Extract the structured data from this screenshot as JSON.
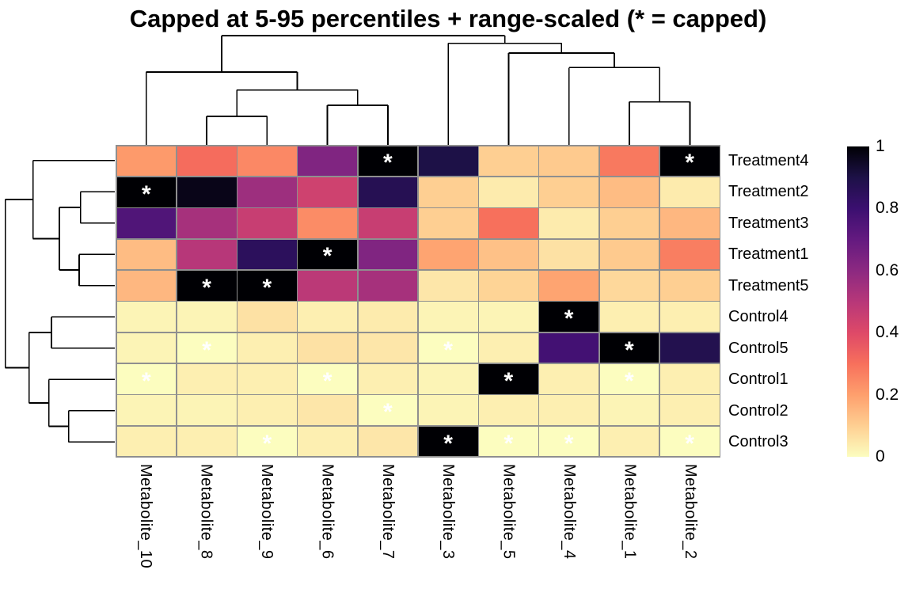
{
  "title": "Capped at 5-95 percentiles + range-scaled (* = capped)",
  "star_symbol": "*",
  "colors": {
    "background": "#ffffff",
    "cell_border": "#8f8f8f",
    "dendrogram_line": "#000000",
    "star": "#ffffff",
    "text": "#000000"
  },
  "chart_data": {
    "type": "heatmap",
    "title": "Capped at 5-95 percentiles + range-scaled (* = capped)",
    "columns": [
      "Metabolite_10",
      "Metabolite_8",
      "Metabolite_9",
      "Metabolite_6",
      "Metabolite_7",
      "Metabolite_3",
      "Metabolite_5",
      "Metabolite_4",
      "Metabolite_1",
      "Metabolite_2"
    ],
    "rows": [
      "Treatment4",
      "Treatment2",
      "Treatment3",
      "Treatment1",
      "Treatment5",
      "Control4",
      "Control5",
      "Control1",
      "Control2",
      "Control3"
    ],
    "values": [
      [
        0.21,
        0.31,
        0.25,
        0.63,
        1.0,
        0.9,
        0.1,
        0.11,
        0.28,
        1.0
      ],
      [
        1.0,
        0.97,
        0.56,
        0.44,
        0.87,
        0.1,
        0.04,
        0.1,
        0.14,
        0.04
      ],
      [
        0.75,
        0.54,
        0.46,
        0.24,
        0.46,
        0.1,
        0.3,
        0.04,
        0.1,
        0.15
      ],
      [
        0.14,
        0.5,
        0.85,
        1.0,
        0.63,
        0.19,
        0.13,
        0.06,
        0.11,
        0.27
      ],
      [
        0.15,
        1.0,
        1.0,
        0.49,
        0.54,
        0.05,
        0.09,
        0.19,
        0.08,
        0.1
      ],
      [
        0.02,
        0.02,
        0.06,
        0.03,
        0.04,
        0.02,
        0.02,
        1.0,
        0.03,
        0.03
      ],
      [
        0.02,
        0.0,
        0.03,
        0.06,
        0.05,
        0.0,
        0.03,
        0.78,
        1.0,
        0.88
      ],
      [
        0.0,
        0.03,
        0.03,
        0.0,
        0.03,
        0.02,
        1.0,
        0.03,
        0.0,
        0.03
      ],
      [
        0.02,
        0.02,
        0.03,
        0.05,
        0.0,
        0.02,
        0.03,
        0.03,
        0.02,
        0.03
      ],
      [
        0.03,
        0.03,
        0.0,
        0.03,
        0.05,
        1.0,
        0.0,
        0.0,
        0.03,
        0.0
      ]
    ],
    "capped": [
      [
        0,
        0,
        0,
        0,
        1,
        0,
        0,
        0,
        0,
        1
      ],
      [
        1,
        0,
        0,
        0,
        0,
        0,
        0,
        0,
        0,
        0
      ],
      [
        0,
        0,
        0,
        0,
        0,
        0,
        0,
        0,
        0,
        0
      ],
      [
        0,
        0,
        0,
        1,
        0,
        0,
        0,
        0,
        0,
        0
      ],
      [
        0,
        1,
        1,
        0,
        0,
        0,
        0,
        0,
        0,
        0
      ],
      [
        0,
        0,
        0,
        0,
        0,
        0,
        0,
        1,
        0,
        0
      ],
      [
        0,
        1,
        0,
        0,
        0,
        1,
        0,
        0,
        1,
        0
      ],
      [
        1,
        0,
        0,
        1,
        0,
        0,
        1,
        0,
        1,
        0
      ],
      [
        0,
        0,
        0,
        0,
        1,
        0,
        0,
        0,
        0,
        0
      ],
      [
        0,
        0,
        1,
        0,
        0,
        1,
        1,
        1,
        0,
        1
      ]
    ],
    "zlim": [
      0,
      1
    ],
    "colormap": "magma-reversed",
    "colormap_stops": [
      "#000004",
      "#1D1147",
      "#3B0F70",
      "#641A80",
      "#8C2981",
      "#B73779",
      "#DE4968",
      "#F7705C",
      "#FE9F6D",
      "#FECF92",
      "#FCFDBF"
    ],
    "legend_ticks": [
      1,
      0.8,
      0.6,
      0.4,
      0.2,
      0
    ],
    "legend_tick_labels": [
      "1",
      "0.8",
      "0.6",
      "0.4",
      "0.2",
      "0"
    ],
    "grid": true,
    "legend_position": "right"
  },
  "dendrograms": {
    "top": {
      "leaf_order": [
        "Metabolite_10",
        "Metabolite_8",
        "Metabolite_9",
        "Metabolite_6",
        "Metabolite_7",
        "Metabolite_3",
        "Metabolite_5",
        "Metabolite_4",
        "Metabolite_1",
        "Metabolite_2"
      ],
      "segments": [
        [
          261.0,
          183,
          261.0,
          147
        ],
        [
          337.3,
          183,
          337.3,
          147
        ],
        [
          261.0,
          147,
          337.3,
          147
        ],
        [
          413.6,
          183,
          413.6,
          133
        ],
        [
          489.9,
          183,
          489.9,
          133
        ],
        [
          413.6,
          133,
          489.9,
          133
        ],
        [
          299.2,
          147,
          299.2,
          113.7
        ],
        [
          451.8,
          133,
          451.8,
          113.7
        ],
        [
          299.2,
          113.7,
          451.8,
          113.7
        ],
        [
          184.7,
          183,
          184.7,
          91
        ],
        [
          375.5,
          113.7,
          375.5,
          91
        ],
        [
          184.7,
          91,
          375.5,
          91
        ],
        [
          795.1,
          183,
          795.1,
          128.7
        ],
        [
          871.4,
          183,
          871.4,
          128.7
        ],
        [
          795.1,
          128.7,
          871.4,
          128.7
        ],
        [
          718.8,
          183,
          718.8,
          85.3
        ],
        [
          833.3,
          128.7,
          833.3,
          85.3
        ],
        [
          718.8,
          85.3,
          833.3,
          85.3
        ],
        [
          642.5,
          183,
          642.5,
          67
        ],
        [
          776.0,
          85.3,
          776.0,
          67
        ],
        [
          642.5,
          67,
          776.0,
          67
        ],
        [
          566.2,
          183,
          566.2,
          54.7
        ],
        [
          709.3,
          67,
          709.3,
          54.7
        ],
        [
          566.2,
          54.7,
          709.3,
          54.7
        ],
        [
          280.1,
          91,
          280.1,
          45
        ],
        [
          637.7,
          54.7,
          637.7,
          45
        ],
        [
          280.1,
          45,
          637.7,
          45
        ]
      ]
    },
    "left": {
      "leaf_order": [
        "Treatment4",
        "Treatment2",
        "Treatment3",
        "Treatment1",
        "Treatment5",
        "Control4",
        "Control5",
        "Control1",
        "Control2",
        "Control3"
      ],
      "segments": [
        [
          145,
          242.3,
          101.7,
          242.3
        ],
        [
          145,
          281.8,
          101.7,
          281.8
        ],
        [
          101.7,
          242.3,
          101.7,
          281.8
        ],
        [
          145,
          321.3,
          100,
          321.3
        ],
        [
          145,
          360.8,
          100,
          360.8
        ],
        [
          100,
          321.3,
          100,
          360.8
        ],
        [
          101.7,
          262,
          75,
          262
        ],
        [
          100,
          341,
          75,
          341
        ],
        [
          75,
          262,
          75,
          341
        ],
        [
          145,
          202.8,
          41.7,
          202.8
        ],
        [
          75,
          301.5,
          41.7,
          301.5
        ],
        [
          41.7,
          202.8,
          41.7,
          301.5
        ],
        [
          145,
          400.3,
          65,
          400.3
        ],
        [
          145,
          439.8,
          65,
          439.8
        ],
        [
          65,
          400.3,
          65,
          439.8
        ],
        [
          145,
          518.8,
          86.7,
          518.8
        ],
        [
          145,
          558.3,
          86.7,
          558.3
        ],
        [
          86.7,
          518.8,
          86.7,
          558.3
        ],
        [
          145,
          479.3,
          61.7,
          479.3
        ],
        [
          86.7,
          538.5,
          61.7,
          538.5
        ],
        [
          61.7,
          479.3,
          61.7,
          538.5
        ],
        [
          65,
          420,
          36.7,
          420
        ],
        [
          61.7,
          508.9,
          36.7,
          508.9
        ],
        [
          36.7,
          420,
          36.7,
          508.9
        ],
        [
          41.7,
          252.1,
          6.7,
          252.1
        ],
        [
          36.7,
          464.4,
          6.7,
          464.4
        ],
        [
          6.7,
          252.1,
          6.7,
          464.4
        ]
      ]
    }
  }
}
